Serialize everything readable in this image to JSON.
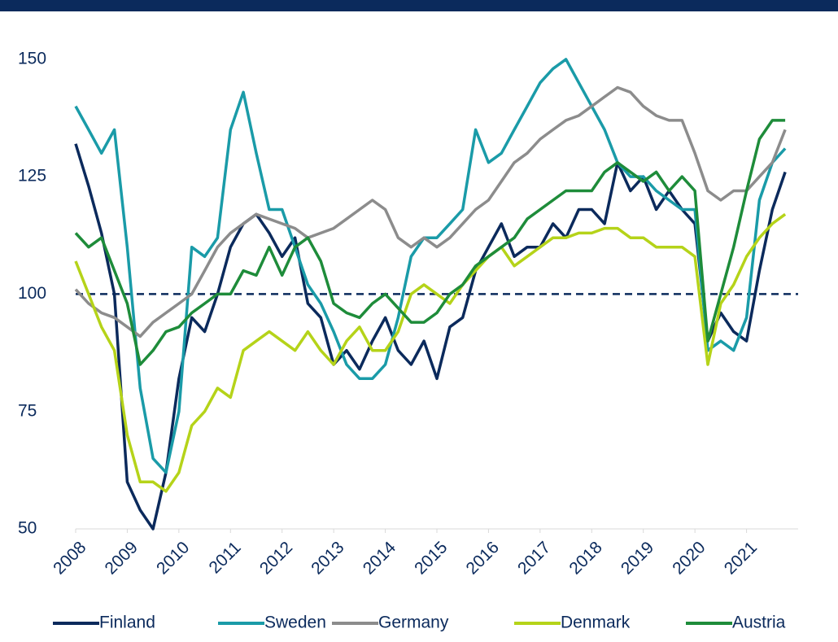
{
  "chart_data": {
    "type": "line",
    "x": [
      2008,
      2008.25,
      2008.5,
      2008.75,
      2009,
      2009.25,
      2009.5,
      2009.75,
      2010,
      2010.25,
      2010.5,
      2010.75,
      2011,
      2011.25,
      2011.5,
      2011.75,
      2012,
      2012.25,
      2012.5,
      2012.75,
      2013,
      2013.25,
      2013.5,
      2013.75,
      2014,
      2014.25,
      2014.5,
      2014.75,
      2015,
      2015.25,
      2015.5,
      2015.75,
      2016,
      2016.25,
      2016.5,
      2016.75,
      2017,
      2017.25,
      2017.5,
      2017.75,
      2018,
      2018.25,
      2018.5,
      2018.75,
      2019,
      2019.25,
      2019.5,
      2019.75,
      2020,
      2020.25,
      2020.5,
      2020.75,
      2021,
      2021.25,
      2021.5,
      2021.75
    ],
    "xlim": [
      2008,
      2022
    ],
    "xticks": [
      2008,
      2009,
      2010,
      2011,
      2012,
      2013,
      2014,
      2015,
      2016,
      2017,
      2018,
      2019,
      2020,
      2021
    ],
    "ylim": [
      50,
      155
    ],
    "yticks": [
      50,
      75,
      100,
      125,
      150
    ],
    "reference_line": 100,
    "series": [
      {
        "name": "Finland",
        "color": "#0b2a5c",
        "values": [
          132,
          123,
          113,
          100,
          60,
          54,
          50,
          62,
          82,
          95,
          92,
          100,
          110,
          115,
          117,
          113,
          108,
          112,
          98,
          95,
          85,
          88,
          84,
          90,
          95,
          88,
          85,
          90,
          82,
          93,
          95,
          105,
          110,
          115,
          108,
          110,
          110,
          115,
          112,
          118,
          118,
          115,
          128,
          122,
          125,
          118,
          122,
          118,
          115,
          90,
          96,
          92,
          90,
          105,
          118,
          126
        ]
      },
      {
        "name": "Sweden",
        "color": "#1a9ba8",
        "values": [
          140,
          135,
          130,
          135,
          110,
          80,
          65,
          62,
          75,
          110,
          108,
          112,
          135,
          143,
          130,
          118,
          118,
          110,
          102,
          98,
          92,
          85,
          82,
          82,
          85,
          95,
          108,
          112,
          112,
          115,
          118,
          135,
          128,
          130,
          135,
          140,
          145,
          148,
          150,
          145,
          140,
          135,
          128,
          125,
          125,
          122,
          120,
          118,
          118,
          88,
          90,
          88,
          95,
          120,
          128,
          131
        ]
      },
      {
        "name": "Germany",
        "color": "#8c8c8c",
        "values": [
          101,
          98,
          96,
          95,
          93,
          91,
          94,
          96,
          98,
          100,
          105,
          110,
          113,
          115,
          117,
          116,
          115,
          114,
          112,
          113,
          114,
          116,
          118,
          120,
          118,
          112,
          110,
          112,
          110,
          112,
          115,
          118,
          120,
          124,
          128,
          130,
          133,
          135,
          137,
          138,
          140,
          142,
          144,
          143,
          140,
          138,
          137,
          137,
          130,
          122,
          120,
          122,
          122,
          125,
          128,
          135
        ]
      },
      {
        "name": "Denmark",
        "color": "#b5d319",
        "values": [
          107,
          100,
          93,
          88,
          70,
          60,
          60,
          58,
          62,
          72,
          75,
          80,
          78,
          88,
          90,
          92,
          90,
          88,
          92,
          88,
          85,
          90,
          93,
          88,
          88,
          92,
          100,
          102,
          100,
          98,
          102,
          105,
          108,
          110,
          106,
          108,
          110,
          112,
          112,
          113,
          113,
          114,
          114,
          112,
          112,
          110,
          110,
          110,
          108,
          85,
          98,
          102,
          108,
          112,
          115,
          117
        ]
      },
      {
        "name": "Austria",
        "color": "#1e8c3a",
        "values": [
          113,
          110,
          112,
          105,
          98,
          85,
          88,
          92,
          93,
          96,
          98,
          100,
          100,
          105,
          104,
          110,
          104,
          110,
          112,
          107,
          98,
          96,
          95,
          98,
          100,
          97,
          94,
          94,
          96,
          100,
          102,
          106,
          108,
          110,
          112,
          116,
          118,
          120,
          122,
          122,
          122,
          126,
          128,
          126,
          124,
          126,
          122,
          125,
          122,
          90,
          100,
          110,
          122,
          133,
          137,
          137
        ]
      }
    ]
  }
}
